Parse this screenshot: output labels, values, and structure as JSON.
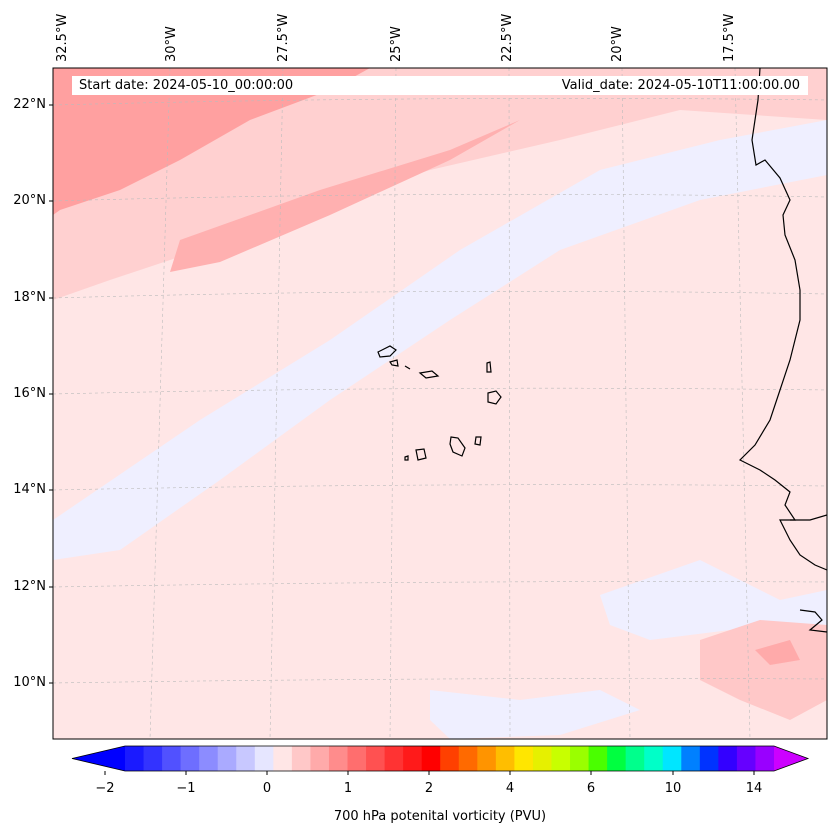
{
  "map": {
    "start_date": "Start date: 2024-05-10_00:00:00",
    "valid_date": "Valid_date: 2024-05-10T11:00:00.00",
    "lon_labels": [
      "32.5°W",
      "30°W",
      "27.5°W",
      "25°W",
      "22.5°W",
      "20°W",
      "17.5°W"
    ],
    "lat_labels": [
      "22°N",
      "20°N",
      "18°N",
      "16°N",
      "14°N",
      "12°N",
      "10°N"
    ],
    "field": "700 hPa potential vorticity",
    "region": "Cape Verde Islands and West African coast"
  },
  "colorbar": {
    "label": "700 hPa potenital vorticity (PVU)",
    "tick_labels": [
      "−2",
      "−1",
      "0",
      "1",
      "2",
      "4",
      "6",
      "10",
      "14"
    ],
    "colors": [
      "#1a1aff",
      "#3333ff",
      "#5151ff",
      "#6e6eff",
      "#8c8cff",
      "#aaaaff",
      "#c8c8ff",
      "#e6e6ff",
      "#ffe6e6",
      "#ffc8c8",
      "#ffaaaa",
      "#ff8c8c",
      "#ff6e6e",
      "#ff5151",
      "#ff3333",
      "#ff1a1a",
      "#ff0000",
      "#ff4000",
      "#ff6a00",
      "#ff9400",
      "#ffbe00",
      "#ffe600",
      "#e6f000",
      "#c8ff00",
      "#9aff00",
      "#4aff00",
      "#00ff40",
      "#00ff8c",
      "#00ffc8",
      "#00e6ff",
      "#0080ff",
      "#0033ff",
      "#3300ff",
      "#6600ff",
      "#9900ff"
    ],
    "extend_low": "#0000ff",
    "extend_high": "#cc00ff"
  }
}
